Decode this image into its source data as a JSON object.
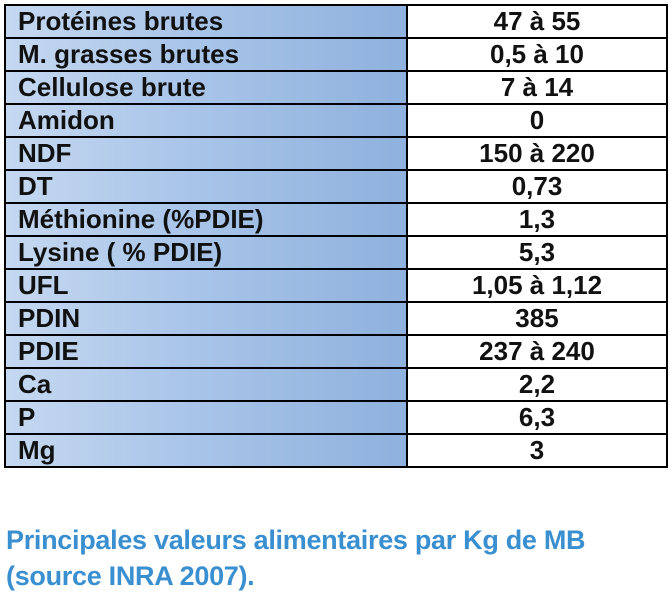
{
  "table": {
    "rows": [
      {
        "label": "Protéines brutes",
        "value": "47 à 55"
      },
      {
        "label": "M. grasses brutes",
        "value": "0,5 à 10"
      },
      {
        "label": "Cellulose brute",
        "value": "7 à 14"
      },
      {
        "label": "Amidon",
        "value": "0"
      },
      {
        "label": "NDF",
        "value": "150 à 220"
      },
      {
        "label": "DT",
        "value": "0,73"
      },
      {
        "label": "Méthionine (%PDIE)",
        "value": "1,3"
      },
      {
        "label": "Lysine ( % PDIE)",
        "value": "5,3"
      },
      {
        "label": "UFL",
        "value": "1,05 à 1,12"
      },
      {
        "label": "PDIN",
        "value": "385"
      },
      {
        "label": "PDIE",
        "value": "237 à 240"
      },
      {
        "label": "Ca",
        "value": "2,2"
      },
      {
        "label": "P",
        "value": "6,3"
      },
      {
        "label": "Mg",
        "value": "3"
      }
    ]
  },
  "caption": {
    "line1": "Principales valeurs alimentaires par Kg de MB",
    "line2": "(source INRA 2007)."
  },
  "colors": {
    "label_cell_background": "#a9c5e9",
    "caption_text": "#3a8fd0",
    "border": "#000000"
  }
}
